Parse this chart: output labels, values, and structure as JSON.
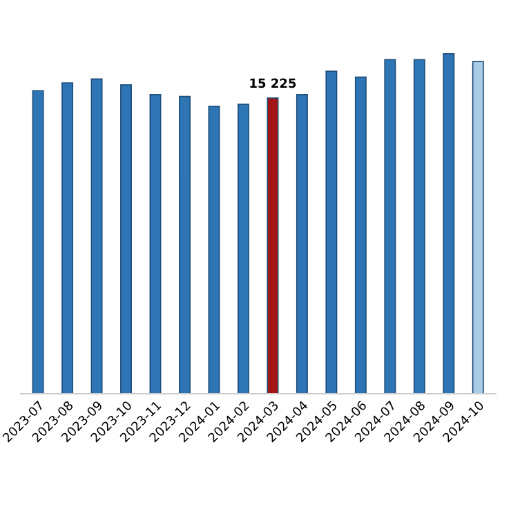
{
  "chart_data": {
    "type": "bar",
    "categories": [
      "2023-07",
      "2023-08",
      "2023-09",
      "2023-10",
      "2023-11",
      "2023-12",
      "2024-01",
      "2024-02",
      "2024-03",
      "2024-04",
      "2024-05",
      "2024-06",
      "2024-07",
      "2024-08",
      "2024-09",
      "2024-10"
    ],
    "values": [
      15600,
      16000,
      16200,
      15900,
      15400,
      15300,
      14800,
      14900,
      15225,
      15400,
      16600,
      16300,
      17200,
      17200,
      17500,
      17100
    ],
    "colors": [
      "#2e75b6",
      "#2e75b6",
      "#2e75b6",
      "#2e75b6",
      "#2e75b6",
      "#2e75b6",
      "#2e75b6",
      "#2e75b6",
      "#a31515",
      "#2e75b6",
      "#2e75b6",
      "#2e75b6",
      "#2e75b6",
      "#2e75b6",
      "#2e75b6",
      "#a9cce8"
    ],
    "value_labels": [
      null,
      null,
      null,
      null,
      null,
      null,
      null,
      null,
      "15 225",
      null,
      null,
      null,
      null,
      null,
      null,
      null
    ],
    "grid": false,
    "legend": false
  }
}
